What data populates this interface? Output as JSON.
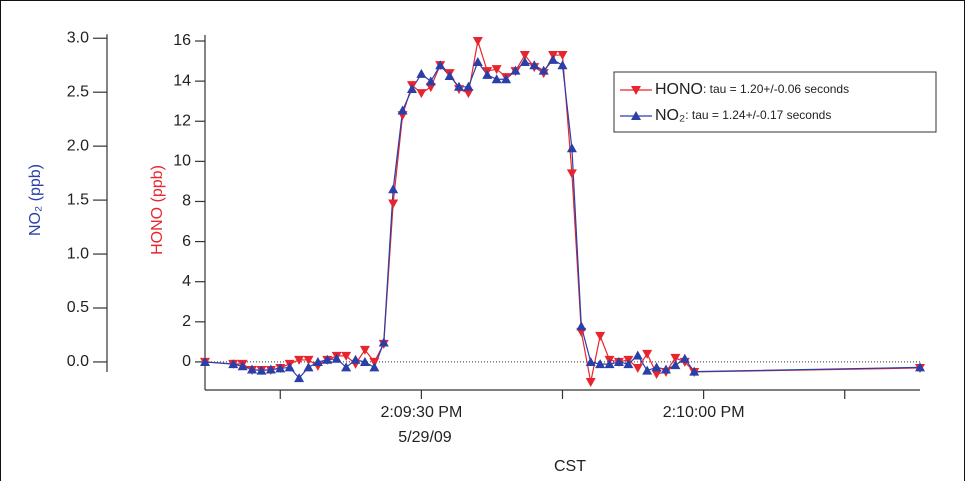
{
  "chart_data": {
    "type": "line",
    "x_label": "CST",
    "x_date_label": "5/29/09",
    "y_label": "HONO (ppb)",
    "y2_label": "NO₂ (ppb)",
    "xlim": [
      "14:09:07",
      "14:10:23"
    ],
    "xticks": [
      {
        "value": "14:09:15"
      },
      {
        "value": "14:09:30",
        "label": "2:09:30 PM"
      },
      {
        "value": "14:09:45"
      },
      {
        "value": "14:10:00",
        "label": "2:10:00 PM"
      },
      {
        "value": "14:10:15"
      }
    ],
    "ylim": [
      -1.4,
      16.3
    ],
    "yticks": [
      0,
      2,
      4,
      6,
      8,
      10,
      12,
      14,
      16
    ],
    "y2lim": [
      -0.26,
      3.03
    ],
    "y2ticks": [
      {
        "value": 0,
        "label": "0.0"
      },
      {
        "value": 0.5,
        "label": "0.5"
      },
      {
        "value": 1,
        "label": "1.0"
      },
      {
        "value": 1.5,
        "label": "1.5"
      },
      {
        "value": 2,
        "label": "2.0"
      },
      {
        "value": 2.5,
        "label": "2.5"
      },
      {
        "value": 3,
        "label": "3.0"
      }
    ],
    "y_label_color": "#e8252e",
    "y2_label_color": "#2a3fa8",
    "x": [
      "14:09:07",
      "14:09:10",
      "14:09:11",
      "14:09:12",
      "14:09:13",
      "14:09:14",
      "14:09:15",
      "14:09:16",
      "14:09:17",
      "14:09:18",
      "14:09:19",
      "14:09:20",
      "14:09:21",
      "14:09:22",
      "14:09:23",
      "14:09:24",
      "14:09:25",
      "14:09:26",
      "14:09:27",
      "14:09:28",
      "14:09:29",
      "14:09:30",
      "14:09:31",
      "14:09:32",
      "14:09:33",
      "14:09:34",
      "14:09:35",
      "14:09:36",
      "14:09:37",
      "14:09:38",
      "14:09:39",
      "14:09:40",
      "14:09:41",
      "14:09:42",
      "14:09:43",
      "14:09:44",
      "14:09:45",
      "14:09:46",
      "14:09:47",
      "14:09:48",
      "14:09:49",
      "14:09:50",
      "14:09:51",
      "14:09:52",
      "14:09:53",
      "14:09:54",
      "14:09:55",
      "14:09:56",
      "14:09:57",
      "14:09:58",
      "14:09:59",
      "14:10:23"
    ],
    "series": [
      {
        "name": "HONO",
        "note": ": tau = 1.20+/-0.06 seconds",
        "color": "#e8252e",
        "marker": "down",
        "values": [
          0,
          -0.1,
          -0.1,
          -0.4,
          -0.4,
          -0.4,
          -0.3,
          -0.1,
          0.1,
          0.1,
          -0.2,
          0.1,
          0.3,
          0.3,
          -0.1,
          0.6,
          0,
          0.9,
          7.9,
          12.3,
          13.8,
          13.4,
          13.7,
          14.8,
          14.4,
          13.6,
          13.4,
          16.0,
          14.5,
          14.6,
          14.2,
          14.5,
          15.3,
          14.7,
          14.4,
          15.3,
          15.3,
          9.4,
          1.5,
          -1.0,
          1.3,
          0.1,
          0,
          0.1,
          -0.3,
          0.4,
          -0.6,
          -0.5,
          0.2,
          0,
          -0.5,
          -0.3
        ]
      },
      {
        "name": "NO₂",
        "note": ": tau = 1.24+/-0.17 seconds",
        "color": "#2a3fa8",
        "marker": "up",
        "axis": "y2",
        "values": [
          0,
          -0.02,
          -0.04,
          -0.07,
          -0.08,
          -0.07,
          -0.06,
          -0.05,
          -0.15,
          -0.05,
          0.0,
          0.02,
          0.03,
          -0.05,
          0.02,
          0.0,
          -0.05,
          0.18,
          1.6,
          2.33,
          2.53,
          2.67,
          2.6,
          2.75,
          2.65,
          2.55,
          2.55,
          2.78,
          2.66,
          2.62,
          2.62,
          2.7,
          2.78,
          2.75,
          2.7,
          2.8,
          2.75,
          1.98,
          0.33,
          0.0,
          -0.02,
          -0.02,
          0.0,
          -0.02,
          0.06,
          -0.08,
          -0.05,
          -0.07,
          -0.03,
          0.03,
          -0.09,
          -0.05
        ]
      }
    ]
  }
}
